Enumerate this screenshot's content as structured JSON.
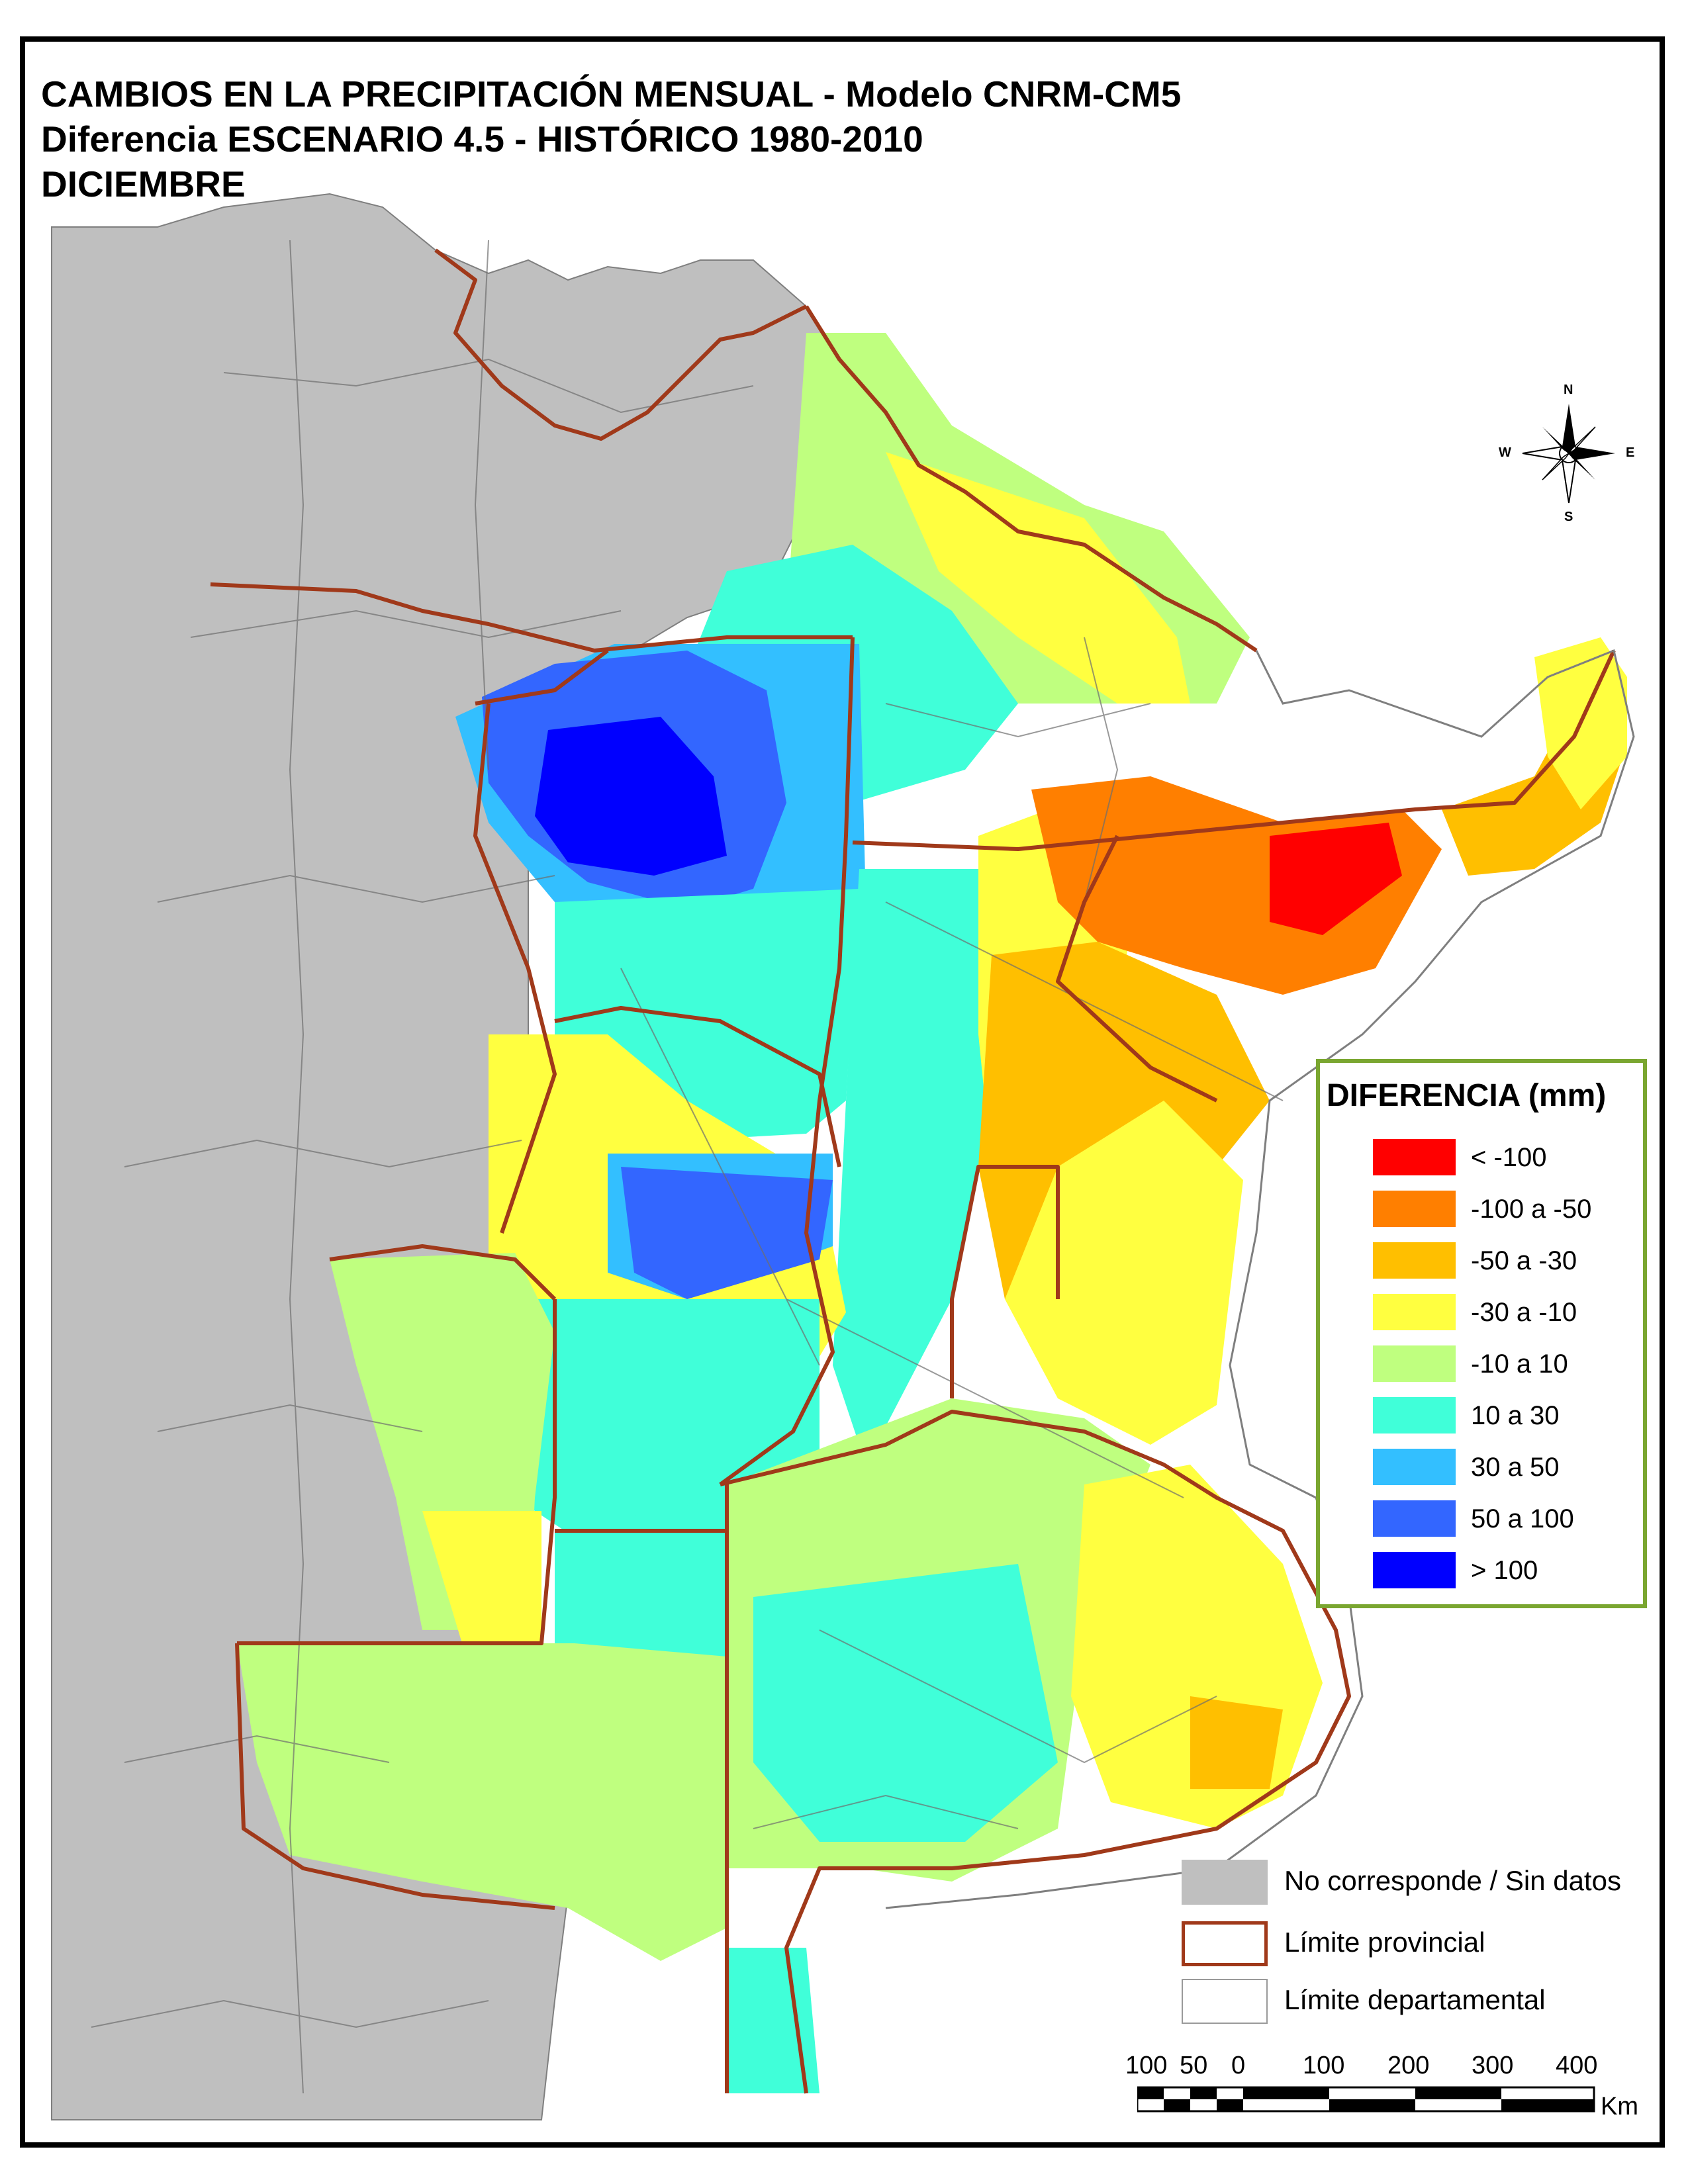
{
  "title": {
    "line1": "CAMBIOS EN LA PRECIPITACIÓN MENSUAL - Modelo CNRM-CM5",
    "line2": "Diferencia ESCENARIO 4.5 - HISTÓRICO 1980-2010",
    "line3": "DICIEMBRE"
  },
  "legend": {
    "title": "DIFERENCIA (mm)",
    "items": [
      {
        "label": "< -100",
        "color": "#ff0000"
      },
      {
        "label": "-100 a -50",
        "color": "#ff7f00"
      },
      {
        "label": "-50 a -30",
        "color": "#ffbf00"
      },
      {
        "label": "-30 a -10",
        "color": "#ffff40"
      },
      {
        "label": "-10 a 10",
        "color": "#bfff7f"
      },
      {
        "label": "10 a 30",
        "color": "#40ffd9"
      },
      {
        "label": "30 a 50",
        "color": "#33bfff"
      },
      {
        "label": "50 a 100",
        "color": "#3366ff"
      },
      {
        "label": "> 100",
        "color": "#0000ff"
      }
    ]
  },
  "reference": {
    "no_data": {
      "label": "No corresponde / Sin datos",
      "color": "#bfbfbf"
    },
    "province": {
      "label": "Límite provincial",
      "color": "#a0391a"
    },
    "department": {
      "label": "Límite departamental",
      "color": "#9a9a9a"
    }
  },
  "compass": {
    "n": "N",
    "s": "S",
    "e": "E",
    "w": "W"
  },
  "scale": {
    "ticks": [
      "100",
      "50",
      "0",
      "100",
      "200",
      "300",
      "400"
    ],
    "unit": "Km"
  }
}
